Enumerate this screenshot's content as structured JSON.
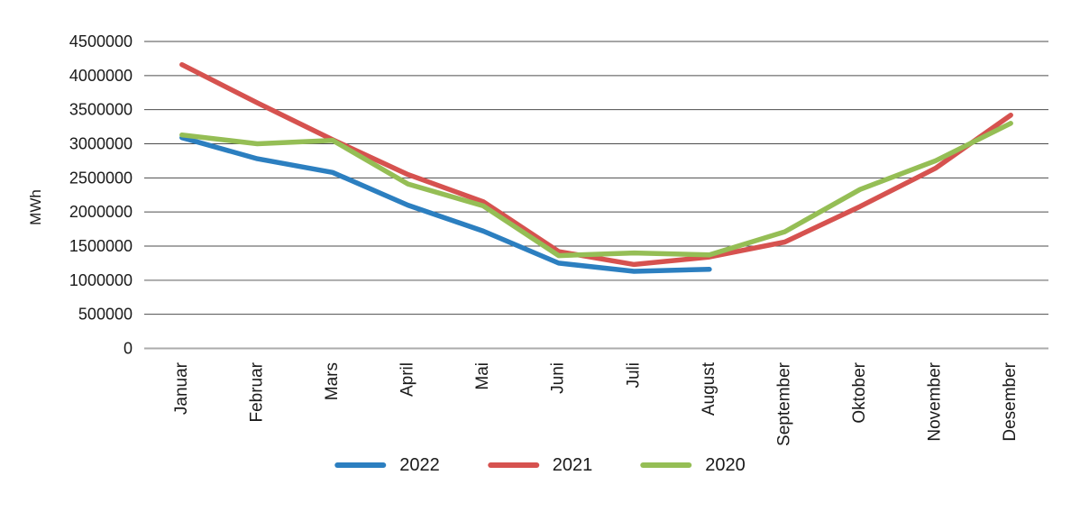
{
  "chart_data": {
    "type": "line",
    "title": "",
    "ylabel": "MWh",
    "categories": [
      "Januar",
      "Februar",
      "Mars",
      "April",
      "Mai",
      "Juni",
      "Juli",
      "August",
      "September",
      "Oktober",
      "November",
      "Desember"
    ],
    "series": [
      {
        "name": "2022",
        "color": "#2C7FC0",
        "values": [
          3090000,
          2780000,
          2580000,
          2100000,
          1720000,
          1250000,
          1130000,
          1160000,
          null,
          null,
          null,
          null
        ]
      },
      {
        "name": "2021",
        "color": "#D6524F",
        "values": [
          4160000,
          3600000,
          3060000,
          2550000,
          2150000,
          1420000,
          1230000,
          1340000,
          1560000,
          2080000,
          2640000,
          3420000
        ]
      },
      {
        "name": "2020",
        "color": "#95BE55",
        "values": [
          3130000,
          3000000,
          3050000,
          2410000,
          2090000,
          1360000,
          1400000,
          1370000,
          1710000,
          2330000,
          2750000,
          3300000
        ]
      }
    ],
    "ylim": [
      0,
      4500000
    ],
    "ytick_step": 500000,
    "ytick_labels": [
      "0",
      "500000",
      "1000000",
      "1500000",
      "2000000",
      "2500000",
      "3000000",
      "3500000",
      "4000000",
      "4500000"
    ],
    "grid": true,
    "emphasized_gridline_values": [
      0,
      1000000
    ],
    "legend_position": "bottom"
  },
  "colors": {
    "grid": "#4D4D4D",
    "grid_emphasis": "#ABABAB",
    "text": "#1A1A1A",
    "background": "#FFFFFF"
  }
}
